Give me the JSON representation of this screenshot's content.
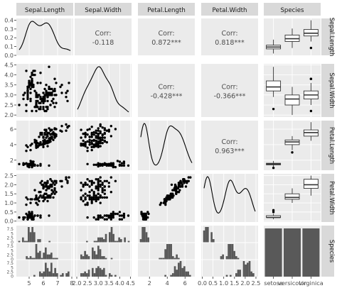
{
  "chart_data": {
    "type": "scatter-matrix",
    "variables": [
      "Sepal.Length",
      "Sepal.Width",
      "Petal.Length",
      "Petal.Width",
      "Species"
    ],
    "species": [
      "setosa",
      "versicolor",
      "virginica"
    ],
    "x_ticks": {
      "Sepal.Length": [
        "5",
        "6",
        "7",
        "8"
      ],
      "Sepal.Width": [
        "2.0",
        "2.5",
        "3.0",
        "3.5",
        "4.0",
        "4.5"
      ],
      "Petal.Length": [
        "2",
        "4",
        "6"
      ],
      "Petal.Width": [
        "0.0",
        "0.5",
        "1.0",
        "1.5",
        "2.0",
        "2.5"
      ],
      "Species": [
        "setosa",
        "versicolor",
        "virginica"
      ]
    },
    "y_ticks": {
      "Sepal.Length": [
        "0.0",
        "0.1",
        "0.2",
        "0.3",
        "0.4"
      ],
      "Sepal.Width": [
        "2.0",
        "2.5",
        "3.0",
        "3.5",
        "4.0",
        "4.5"
      ],
      "Petal.Length": [
        "2",
        "4",
        "6"
      ],
      "Petal.Width": [
        "0.0",
        "0.5",
        "1.0",
        "1.5",
        "2.0",
        "2.5"
      ],
      "Species": [
        "0",
        "2.5",
        "5",
        "7.5",
        "0",
        "2.5",
        "5",
        "7.5",
        "0",
        "2.5",
        "5",
        "7.5"
      ]
    },
    "correlations": [
      {
        "row": "Sepal.Length",
        "col": "Sepal.Width",
        "label": "Corr:",
        "value": "-0.118"
      },
      {
        "row": "Sepal.Length",
        "col": "Petal.Length",
        "label": "Corr:",
        "value": "0.872***"
      },
      {
        "row": "Sepal.Length",
        "col": "Petal.Width",
        "label": "Corr:",
        "value": "0.818***"
      },
      {
        "row": "Sepal.Width",
        "col": "Petal.Length",
        "label": "Corr:",
        "value": "-0.428***"
      },
      {
        "row": "Sepal.Width",
        "col": "Petal.Width",
        "label": "Corr:",
        "value": "-0.366***"
      },
      {
        "row": "Petal.Length",
        "col": "Petal.Width",
        "label": "Corr:",
        "value": "0.963***"
      }
    ],
    "boxplots": {
      "Sepal.Length": [
        {
          "species": "setosa",
          "min": 4.3,
          "q1": 4.8,
          "median": 5.0,
          "q3": 5.2,
          "max": 5.8,
          "outliers": []
        },
        {
          "species": "versicolor",
          "min": 4.9,
          "q1": 5.6,
          "median": 5.9,
          "q3": 6.3,
          "max": 7.0,
          "outliers": []
        },
        {
          "species": "virginica",
          "min": 5.6,
          "q1": 6.2,
          "median": 6.5,
          "q3": 6.9,
          "max": 7.9,
          "outliers": [
            4.9
          ]
        }
      ],
      "Sepal.Width": [
        {
          "species": "setosa",
          "min": 2.9,
          "q1": 3.2,
          "median": 3.4,
          "q3": 3.7,
          "max": 4.4,
          "outliers": [
            2.3
          ]
        },
        {
          "species": "versicolor",
          "min": 2.0,
          "q1": 2.5,
          "median": 2.8,
          "q3": 3.0,
          "max": 3.4,
          "outliers": []
        },
        {
          "species": "virginica",
          "min": 2.5,
          "q1": 2.8,
          "median": 3.0,
          "q3": 3.2,
          "max": 3.6,
          "outliers": [
            2.2,
            3.8,
            3.8
          ]
        }
      ],
      "Petal.Length": [
        {
          "species": "setosa",
          "min": 1.1,
          "q1": 1.4,
          "median": 1.5,
          "q3": 1.6,
          "max": 1.9,
          "outliers": [
            1.0
          ]
        },
        {
          "species": "versicolor",
          "min": 3.3,
          "q1": 4.0,
          "median": 4.35,
          "q3": 4.6,
          "max": 5.1,
          "outliers": [
            3.0
          ]
        },
        {
          "species": "virginica",
          "min": 4.5,
          "q1": 5.1,
          "median": 5.55,
          "q3": 5.9,
          "max": 6.9,
          "outliers": []
        }
      ],
      "Petal.Width": [
        {
          "species": "setosa",
          "min": 0.1,
          "q1": 0.2,
          "median": 0.2,
          "q3": 0.3,
          "max": 0.4,
          "outliers": [
            0.5,
            0.6
          ]
        },
        {
          "species": "versicolor",
          "min": 1.0,
          "q1": 1.2,
          "median": 1.3,
          "q3": 1.5,
          "max": 1.8,
          "outliers": []
        },
        {
          "species": "virginica",
          "min": 1.4,
          "q1": 1.8,
          "median": 2.0,
          "q3": 2.3,
          "max": 2.5,
          "outliers": []
        }
      ]
    },
    "species_counts": [
      50,
      50,
      50
    ]
  }
}
